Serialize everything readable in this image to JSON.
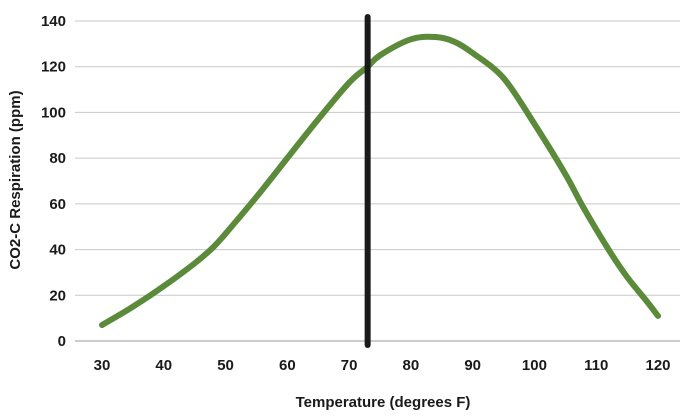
{
  "chart_data": {
    "type": "line",
    "title": "",
    "xlabel": "Temperature (degrees F)",
    "ylabel": "CO2-C Respiration (ppm)",
    "xlim": [
      30,
      120
    ],
    "ylim": [
      0,
      140
    ],
    "x_ticks": [
      30,
      40,
      50,
      60,
      70,
      80,
      90,
      100,
      110,
      120
    ],
    "y_ticks": [
      0,
      20,
      40,
      60,
      80,
      100,
      120,
      140
    ],
    "grid": "horizontal",
    "legend": "none",
    "series": [
      {
        "color": "#5a8a3a",
        "x": [
          30,
          35,
          40,
          45,
          48,
          50,
          55,
          60,
          65,
          70,
          73,
          75,
          80,
          84,
          87,
          90,
          95,
          100,
          105,
          108,
          112,
          115,
          118,
          120
        ],
        "y": [
          7,
          15,
          24,
          34,
          41,
          47,
          63,
          80,
          97,
          113,
          120,
          125,
          132,
          133,
          131,
          126,
          115,
          95,
          73,
          58,
          40,
          28,
          18,
          11
        ]
      }
    ],
    "annotations": [
      {
        "type": "vertical_line",
        "x": 73,
        "color": "#1a1a1a"
      }
    ]
  }
}
